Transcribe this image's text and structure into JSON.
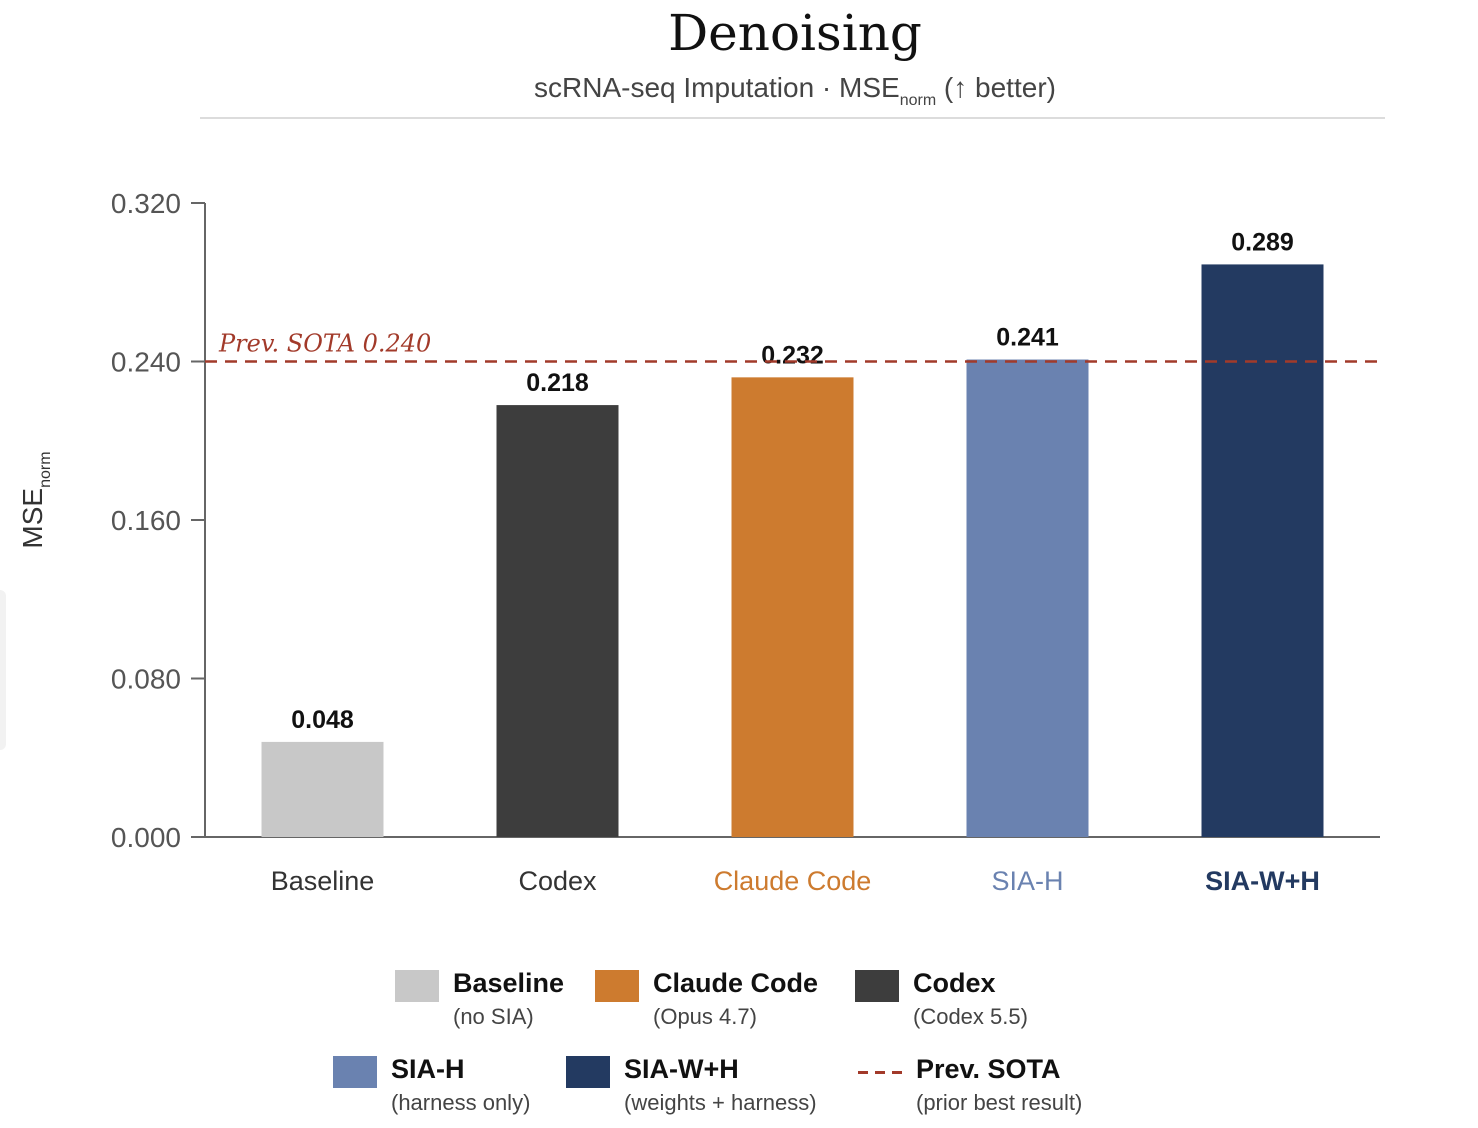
{
  "chart_data": {
    "type": "bar",
    "title": "Denoising",
    "subtitle": {
      "main": "scRNA-seq Imputation · MSE",
      "sub": "norm",
      "suffix": " (↑ better)"
    },
    "ylabel": {
      "main": "MSE",
      "sub": "norm"
    },
    "ylim": [
      0,
      0.32
    ],
    "yticks": [
      "0.000",
      "0.080",
      "0.160",
      "0.240",
      "0.320"
    ],
    "categories": [
      "Baseline",
      "Codex",
      "Claude Code",
      "SIA-H",
      "SIA-W+H"
    ],
    "values": [
      0.048,
      0.218,
      0.232,
      0.241,
      0.289
    ],
    "value_labels": [
      "0.048",
      "0.218",
      "0.232",
      "0.241",
      "0.289"
    ],
    "colors": [
      "#c8c8c8",
      "#3d3d3d",
      "#cd7b2f",
      "#6a82b0",
      "#233a61"
    ],
    "label_colors": [
      "#333333",
      "#333333",
      "#cd7b2f",
      "#6a82b0",
      "#233a61"
    ],
    "reference_line": {
      "label": "Prev. SOTA  0.240",
      "value": 0.24,
      "color": "#a23a2a",
      "style": "dashed"
    },
    "grid": false,
    "legend_position": "bottom"
  },
  "legend": [
    {
      "name": "Baseline",
      "note": "(no SIA)",
      "color": "#c8c8c8"
    },
    {
      "name": "Claude Code",
      "note": "(Opus 4.7)",
      "color": "#cd7b2f"
    },
    {
      "name": "Codex",
      "note": "(Codex 5.5)",
      "color": "#3d3d3d"
    },
    {
      "name": "SIA-H",
      "note": "(harness only)",
      "color": "#6a82b0"
    },
    {
      "name": "SIA-W+H",
      "note": "(weights + harness)",
      "color": "#233a61"
    },
    {
      "name": "Prev. SOTA",
      "note": "(prior best result)",
      "color": "#a23a2a"
    }
  ]
}
